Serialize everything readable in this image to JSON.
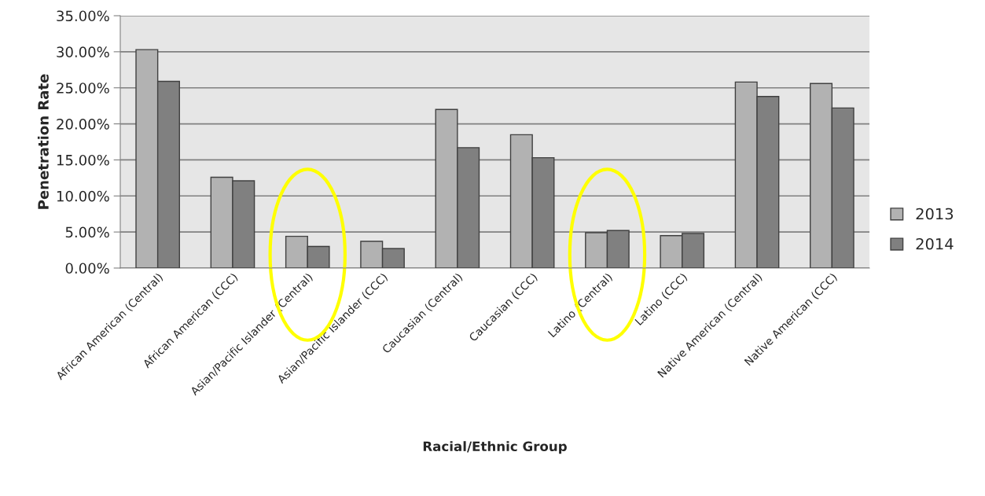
{
  "chart_data": {
    "type": "bar",
    "xlabel": "Racial/Ethnic Group",
    "ylabel": "Penetration Rate",
    "categories": [
      "African American (Central)",
      "African American (CCC)",
      "Asian/Pacific Islander (Central)",
      "Asian/Pacific Islander (CCC)",
      "Caucasian (Central)",
      "Caucasian (CCC)",
      "Latino (Central)",
      "Latino (CCC)",
      "Native American (Central)",
      "Native American (CCC)"
    ],
    "series": [
      {
        "name": "2013",
        "color": "#b2b2b2",
        "values": [
          30.3,
          12.6,
          4.4,
          3.7,
          22.0,
          18.5,
          4.9,
          4.5,
          25.8,
          25.6
        ]
      },
      {
        "name": "2014",
        "color": "#808080",
        "values": [
          25.9,
          12.1,
          3.0,
          2.7,
          16.7,
          15.3,
          5.2,
          4.8,
          23.8,
          22.2
        ]
      }
    ],
    "ylim": [
      0,
      35
    ],
    "yticks": [
      {
        "value": 0,
        "label": "0.00%"
      },
      {
        "value": 5,
        "label": "5.00%"
      },
      {
        "value": 10,
        "label": "10.00%"
      },
      {
        "value": 15,
        "label": "15.00%"
      },
      {
        "value": 20,
        "label": "20.00%"
      },
      {
        "value": 25,
        "label": "25.00%"
      },
      {
        "value": 30,
        "label": "30.00%"
      },
      {
        "value": 35,
        "label": "35.00%"
      }
    ],
    "grid": "y",
    "legend": "right"
  }
}
